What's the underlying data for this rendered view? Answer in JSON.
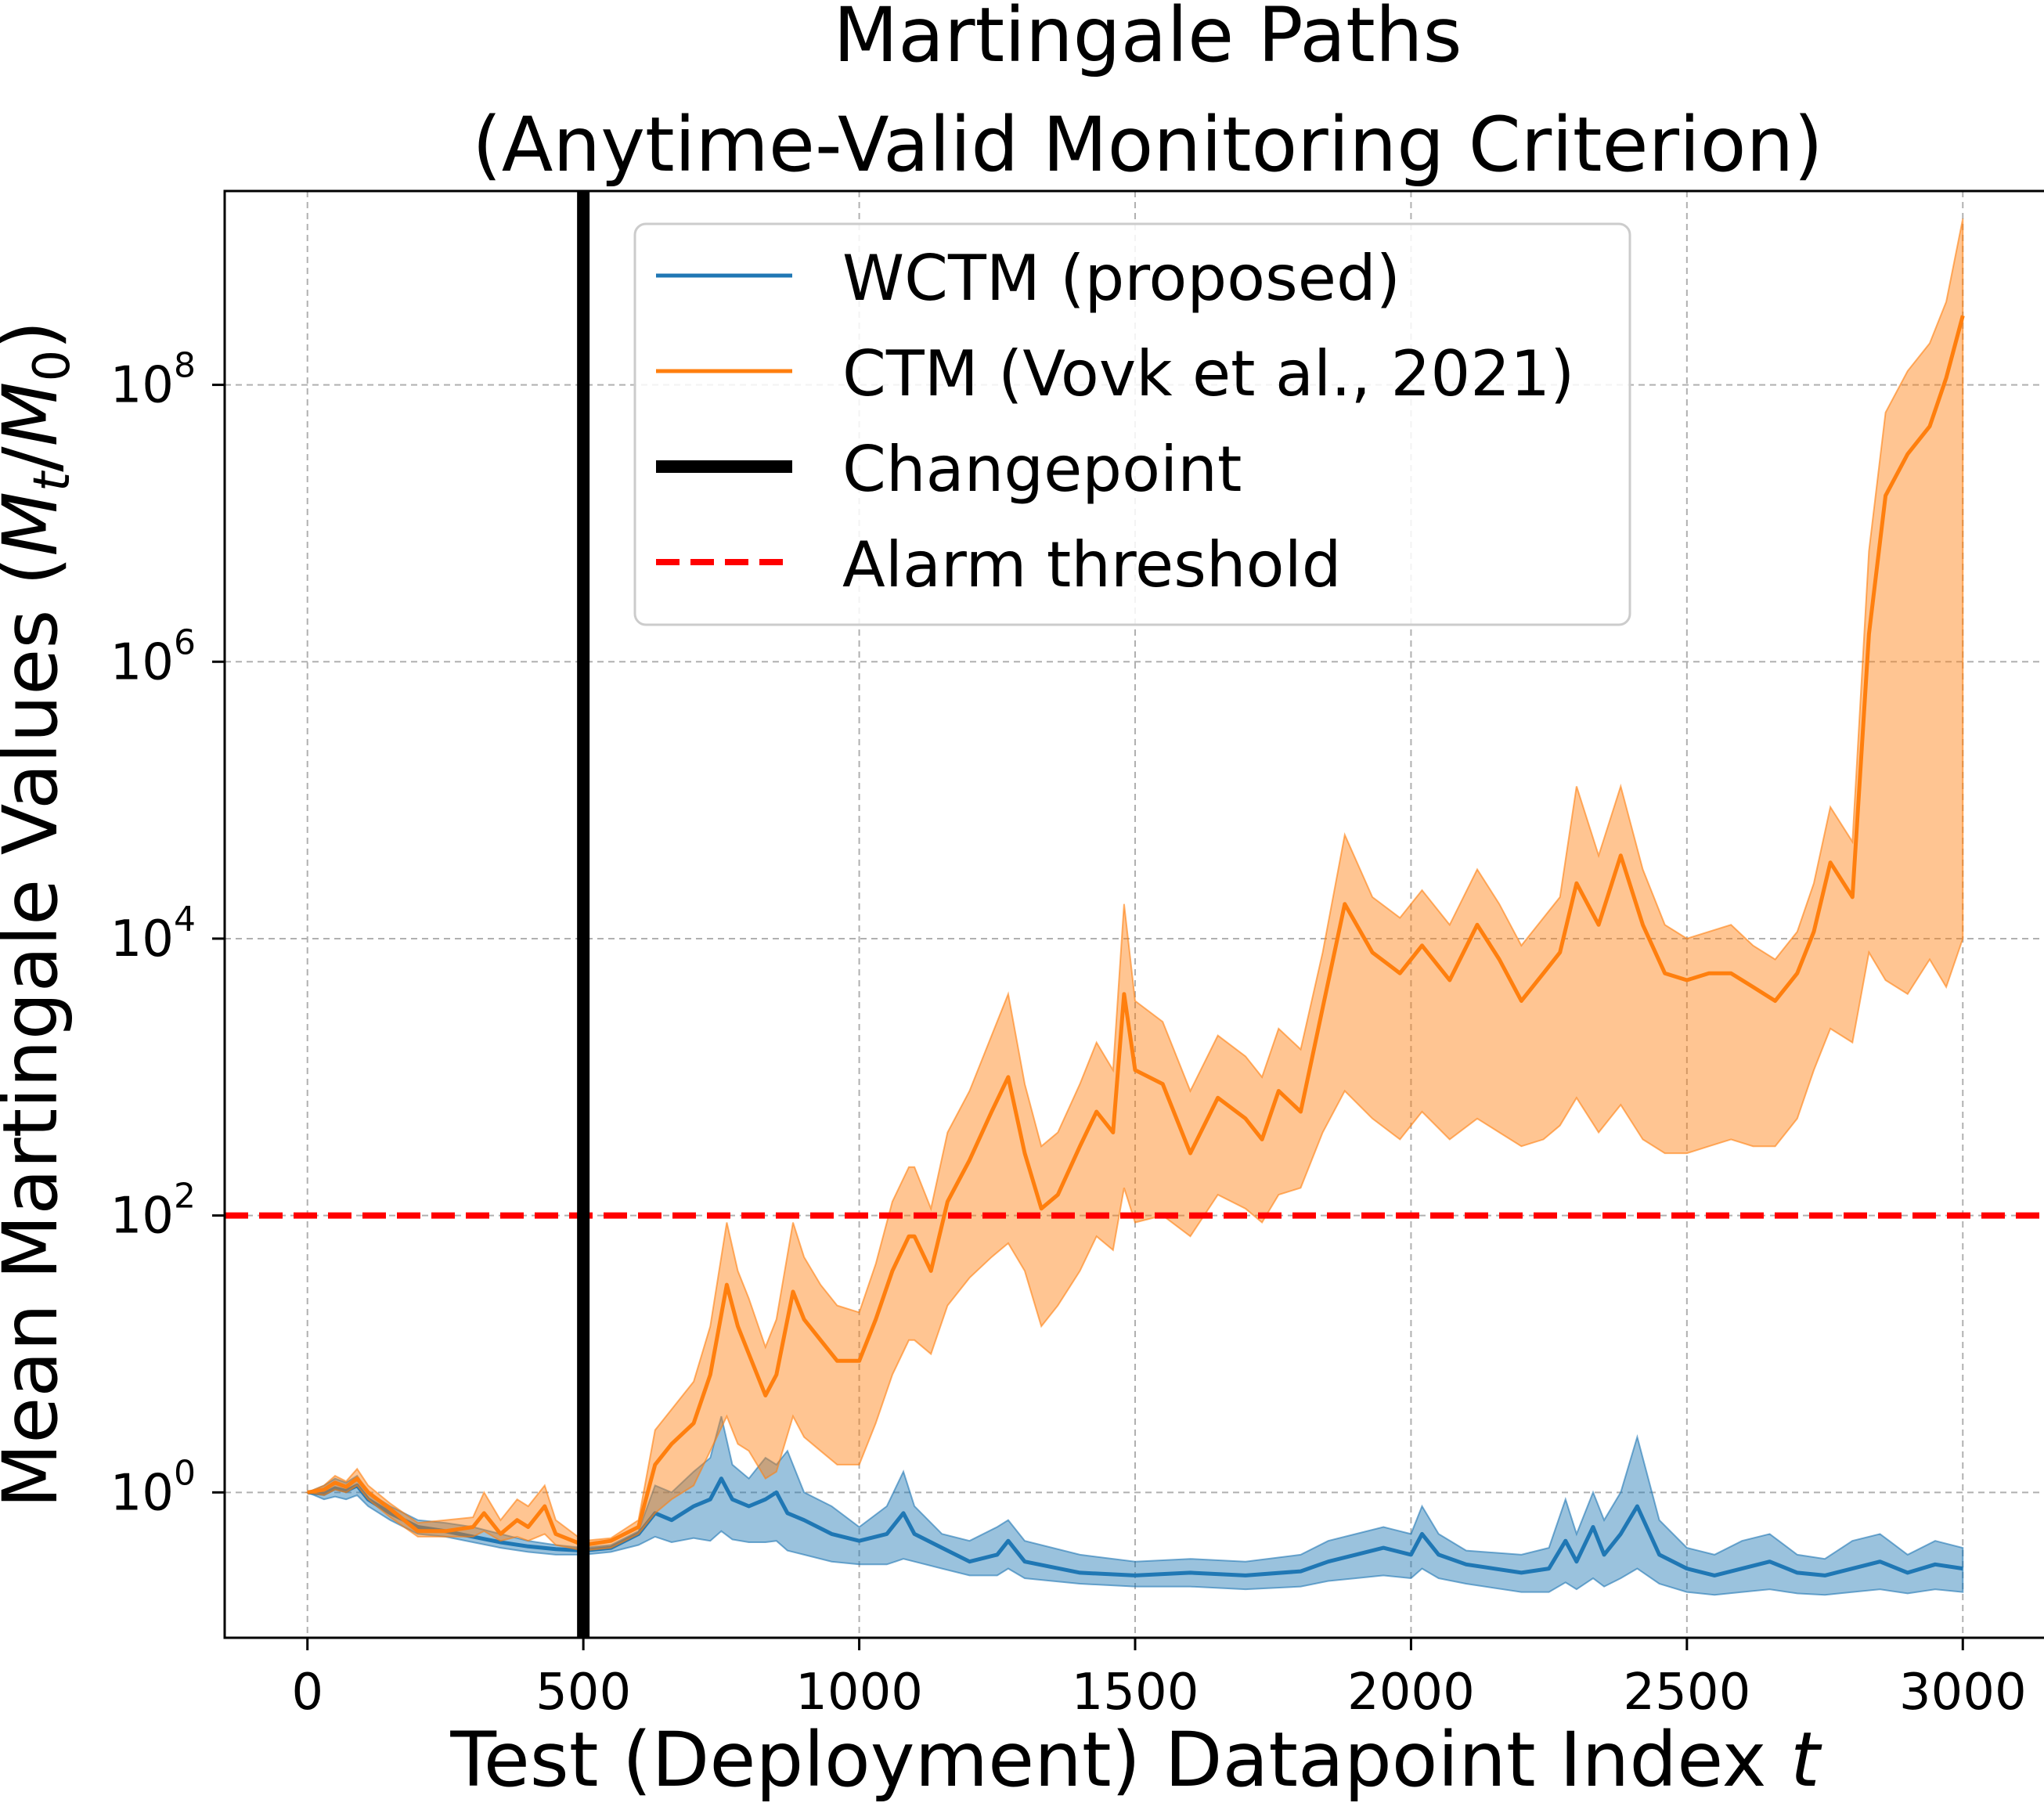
{
  "chart_data": {
    "type": "line",
    "title_line1": "Martingale Paths",
    "title_line2": "(Anytime-Valid Monitoring Criterion)",
    "xlabel": "Test (Deployment) Datapoint Index ",
    "xlabel_var": "t",
    "ylabel": "Mean Martingale Values (",
    "ylabel_tail": ")",
    "xlim": [
      -150,
      3150
    ],
    "ylim_log10": [
      -1.05,
      9.4
    ],
    "y_scale": "log",
    "grid": true,
    "legend_position": "top-center",
    "x_ticks": [
      0,
      500,
      1000,
      1500,
      2000,
      2500,
      3000
    ],
    "x_tick_labels": [
      "0",
      "500",
      "1000",
      "1500",
      "2000",
      "2500",
      "3000"
    ],
    "y_ticks_log10": [
      0,
      2,
      4,
      6,
      8
    ],
    "y_tick_base": "10",
    "y_tick_exps": [
      "0",
      "2",
      "4",
      "6",
      "8"
    ],
    "changepoint_x": 500,
    "alarm_threshold": 100,
    "legend": {
      "wctm": "WCTM (proposed)",
      "ctm": "CTM (Vovk et al., 2021)",
      "changepoint": "Changepoint",
      "alarm": "Alarm threshold"
    },
    "colors": {
      "wctm": "#1f77b4",
      "ctm": "#ff7f0e",
      "changepoint": "#000000",
      "alarm": "#ff0000"
    },
    "series": [
      {
        "name": "WCTM (proposed)",
        "x": [
          0,
          30,
          50,
          70,
          90,
          110,
          150,
          200,
          250,
          300,
          350,
          400,
          450,
          500,
          550,
          600,
          630,
          660,
          700,
          730,
          750,
          770,
          800,
          830,
          850,
          870,
          900,
          950,
          1000,
          1050,
          1080,
          1100,
          1150,
          1200,
          1250,
          1270,
          1300,
          1400,
          1500,
          1600,
          1700,
          1800,
          1850,
          1900,
          1950,
          2000,
          2020,
          2050,
          2100,
          2200,
          2250,
          2280,
          2300,
          2330,
          2350,
          2380,
          2410,
          2450,
          2500,
          2550,
          2600,
          2650,
          2700,
          2750,
          2800,
          2850,
          2900,
          2950,
          3000
        ],
        "y_log10": [
          0,
          -0.01,
          0.03,
          0.01,
          0.05,
          -0.05,
          -0.15,
          -0.25,
          -0.28,
          -0.32,
          -0.36,
          -0.39,
          -0.41,
          -0.42,
          -0.4,
          -0.3,
          -0.15,
          -0.2,
          -0.1,
          -0.05,
          0.1,
          -0.05,
          -0.1,
          -0.05,
          0.0,
          -0.15,
          -0.2,
          -0.3,
          -0.35,
          -0.3,
          -0.15,
          -0.3,
          -0.4,
          -0.5,
          -0.45,
          -0.35,
          -0.5,
          -0.58,
          -0.6,
          -0.58,
          -0.6,
          -0.57,
          -0.5,
          -0.45,
          -0.4,
          -0.45,
          -0.3,
          -0.45,
          -0.52,
          -0.58,
          -0.55,
          -0.35,
          -0.5,
          -0.25,
          -0.45,
          -0.3,
          -0.1,
          -0.45,
          -0.55,
          -0.6,
          -0.55,
          -0.5,
          -0.58,
          -0.6,
          -0.55,
          -0.5,
          -0.58,
          -0.52,
          -0.55
        ],
        "band_upper_log10": [
          0,
          0.05,
          0.1,
          0.07,
          0.12,
          0.0,
          -0.1,
          -0.2,
          -0.22,
          -0.25,
          -0.3,
          -0.35,
          -0.38,
          -0.4,
          -0.38,
          -0.28,
          0.05,
          0.0,
          0.15,
          0.25,
          0.55,
          0.2,
          0.1,
          0.25,
          0.2,
          0.3,
          0.0,
          -0.1,
          -0.25,
          -0.1,
          0.15,
          -0.1,
          -0.3,
          -0.35,
          -0.25,
          -0.2,
          -0.35,
          -0.45,
          -0.5,
          -0.48,
          -0.5,
          -0.45,
          -0.35,
          -0.3,
          -0.25,
          -0.3,
          -0.1,
          -0.3,
          -0.42,
          -0.45,
          -0.4,
          -0.05,
          -0.3,
          0.0,
          -0.2,
          0.0,
          0.4,
          -0.2,
          -0.4,
          -0.45,
          -0.35,
          -0.3,
          -0.45,
          -0.48,
          -0.35,
          -0.3,
          -0.45,
          -0.35,
          -0.4
        ],
        "band_lower_log10": [
          0,
          -0.05,
          -0.03,
          -0.05,
          -0.02,
          -0.1,
          -0.2,
          -0.3,
          -0.32,
          -0.36,
          -0.4,
          -0.43,
          -0.45,
          -0.45,
          -0.43,
          -0.38,
          -0.32,
          -0.36,
          -0.33,
          -0.35,
          -0.28,
          -0.34,
          -0.36,
          -0.36,
          -0.35,
          -0.42,
          -0.45,
          -0.5,
          -0.52,
          -0.52,
          -0.48,
          -0.5,
          -0.55,
          -0.6,
          -0.6,
          -0.55,
          -0.62,
          -0.66,
          -0.68,
          -0.68,
          -0.7,
          -0.68,
          -0.64,
          -0.62,
          -0.6,
          -0.62,
          -0.55,
          -0.62,
          -0.66,
          -0.72,
          -0.72,
          -0.65,
          -0.7,
          -0.62,
          -0.68,
          -0.62,
          -0.55,
          -0.66,
          -0.72,
          -0.74,
          -0.72,
          -0.7,
          -0.73,
          -0.74,
          -0.72,
          -0.7,
          -0.73,
          -0.7,
          -0.72
        ]
      },
      {
        "name": "CTM (Vovk et al., 2021)",
        "x": [
          0,
          30,
          50,
          70,
          90,
          110,
          150,
          200,
          250,
          300,
          320,
          350,
          380,
          400,
          430,
          450,
          500,
          550,
          600,
          630,
          660,
          700,
          730,
          760,
          780,
          800,
          830,
          850,
          880,
          900,
          930,
          960,
          1000,
          1030,
          1060,
          1090,
          1100,
          1130,
          1160,
          1200,
          1240,
          1270,
          1300,
          1330,
          1360,
          1400,
          1430,
          1460,
          1480,
          1500,
          1550,
          1600,
          1650,
          1700,
          1730,
          1760,
          1800,
          1840,
          1880,
          1930,
          1980,
          2020,
          2070,
          2120,
          2160,
          2200,
          2240,
          2270,
          2300,
          2340,
          2380,
          2420,
          2460,
          2500,
          2540,
          2580,
          2620,
          2660,
          2700,
          2730,
          2760,
          2800,
          2830,
          2860,
          2900,
          2940,
          2970,
          3000
        ],
        "y_log10": [
          0,
          0.02,
          0.07,
          0.04,
          0.1,
          0.0,
          -0.12,
          -0.28,
          -0.28,
          -0.25,
          -0.15,
          -0.3,
          -0.2,
          -0.25,
          -0.1,
          -0.3,
          -0.38,
          -0.35,
          -0.25,
          0.2,
          0.35,
          0.5,
          0.85,
          1.5,
          1.2,
          1.0,
          0.7,
          0.85,
          1.45,
          1.25,
          1.1,
          0.95,
          0.95,
          1.25,
          1.6,
          1.85,
          1.85,
          1.6,
          2.1,
          2.4,
          2.75,
          3.0,
          2.45,
          2.05,
          2.15,
          2.5,
          2.75,
          2.6,
          3.6,
          3.05,
          2.95,
          2.45,
          2.85,
          2.7,
          2.55,
          2.9,
          2.75,
          3.5,
          4.25,
          3.9,
          3.75,
          3.95,
          3.7,
          4.1,
          3.85,
          3.55,
          3.75,
          3.9,
          4.4,
          4.1,
          4.6,
          4.1,
          3.75,
          3.7,
          3.75,
          3.75,
          3.65,
          3.55,
          3.75,
          4.05,
          4.55,
          4.3,
          6.2,
          7.2,
          7.5,
          7.7,
          8.05,
          8.5
        ],
        "band_upper_log10": [
          0,
          0.05,
          0.12,
          0.08,
          0.17,
          0.05,
          -0.08,
          -0.22,
          -0.2,
          -0.18,
          0.0,
          -0.2,
          -0.05,
          -0.1,
          0.05,
          -0.2,
          -0.35,
          -0.33,
          -0.2,
          0.45,
          0.6,
          0.8,
          1.2,
          1.95,
          1.6,
          1.4,
          1.05,
          1.25,
          1.95,
          1.7,
          1.5,
          1.35,
          1.3,
          1.65,
          2.1,
          2.35,
          2.35,
          2.05,
          2.6,
          2.9,
          3.3,
          3.6,
          2.95,
          2.5,
          2.6,
          2.95,
          3.25,
          3.05,
          4.25,
          3.55,
          3.4,
          2.9,
          3.3,
          3.15,
          3.0,
          3.35,
          3.2,
          3.9,
          4.75,
          4.3,
          4.15,
          4.35,
          4.1,
          4.5,
          4.25,
          3.95,
          4.15,
          4.3,
          5.1,
          4.6,
          5.1,
          4.5,
          4.1,
          4.0,
          4.05,
          4.1,
          3.95,
          3.85,
          4.05,
          4.4,
          4.95,
          4.7,
          6.8,
          7.8,
          8.1,
          8.3,
          8.6,
          9.2
        ],
        "band_lower_log10": [
          0,
          -0.02,
          0.02,
          0.0,
          0.05,
          -0.05,
          -0.18,
          -0.32,
          -0.32,
          -0.32,
          -0.28,
          -0.35,
          -0.32,
          -0.35,
          -0.3,
          -0.38,
          -0.42,
          -0.4,
          -0.3,
          -0.15,
          -0.05,
          0.05,
          0.3,
          0.55,
          0.35,
          0.3,
          0.1,
          0.15,
          0.55,
          0.4,
          0.3,
          0.2,
          0.2,
          0.5,
          0.85,
          1.1,
          1.1,
          1.0,
          1.35,
          1.55,
          1.7,
          1.8,
          1.6,
          1.2,
          1.35,
          1.6,
          1.85,
          1.75,
          2.2,
          1.95,
          2.0,
          1.85,
          2.15,
          2.05,
          1.95,
          2.15,
          2.2,
          2.6,
          2.9,
          2.7,
          2.55,
          2.75,
          2.55,
          2.7,
          2.6,
          2.5,
          2.55,
          2.65,
          2.85,
          2.6,
          2.8,
          2.55,
          2.45,
          2.45,
          2.5,
          2.55,
          2.5,
          2.5,
          2.7,
          3.05,
          3.35,
          3.25,
          3.9,
          3.7,
          3.6,
          3.85,
          3.65,
          4.0
        ]
      }
    ]
  }
}
